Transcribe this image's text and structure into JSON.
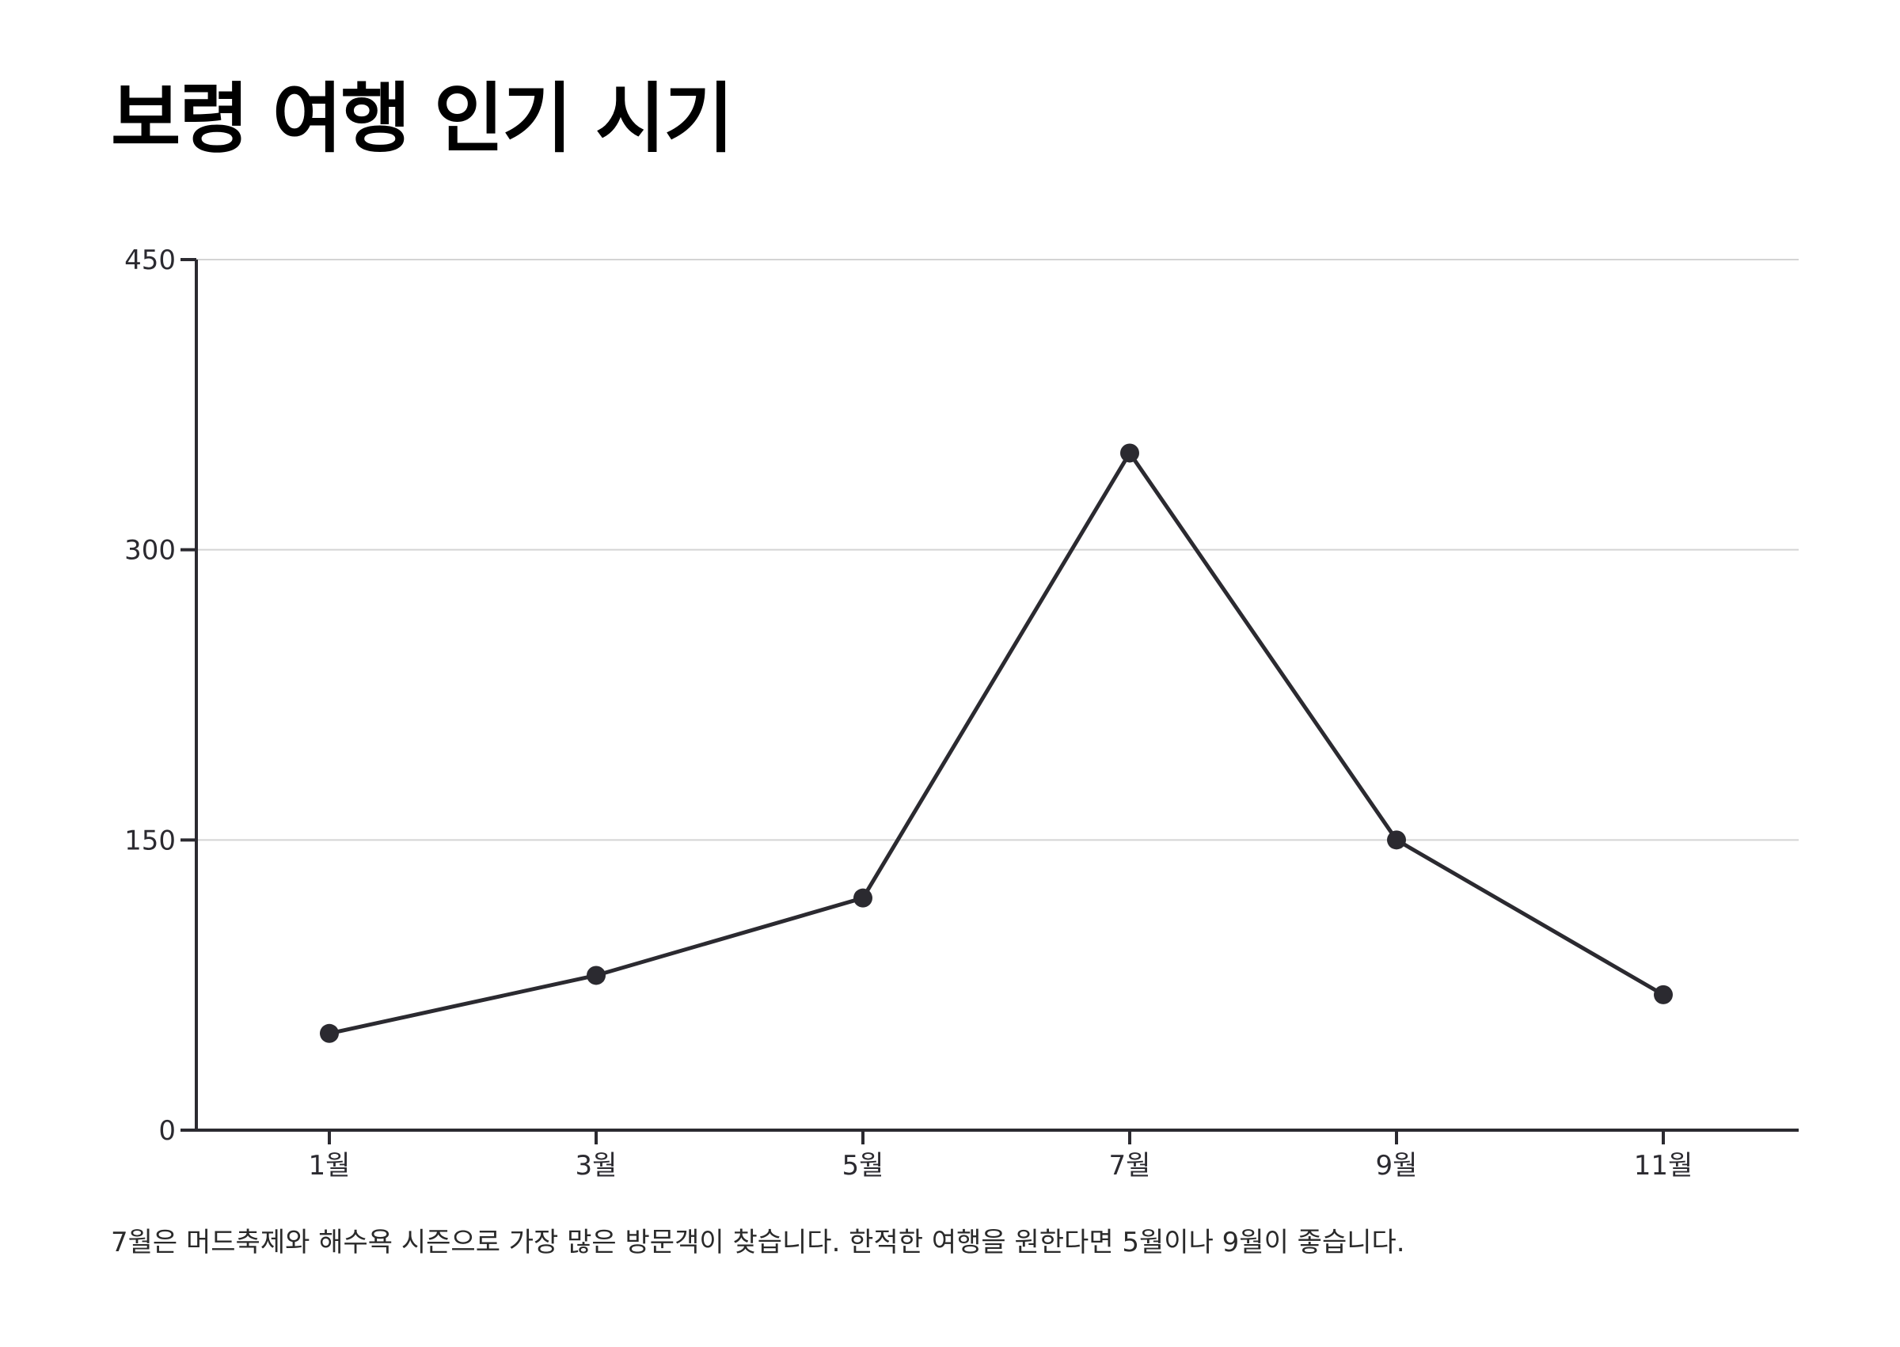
{
  "chart_data": {
    "type": "line",
    "title": "보령 여행 인기 시기",
    "caption": "7월은 머드축제와 해수욕 시즌으로 가장 많은 방문객이 찾습니다. 한적한 여행을 원한다면 5월이나 9월이 좋습니다.",
    "categories": [
      "1월",
      "3월",
      "5월",
      "7월",
      "9월",
      "11월"
    ],
    "series": [
      {
        "values": [
          50,
          80,
          120,
          350,
          150,
          70
        ]
      }
    ],
    "xlabel": "",
    "ylabel": "",
    "ylim": [
      0,
      450
    ],
    "yticks": [
      0,
      150,
      300,
      450
    ],
    "ytick_labels": [
      "0",
      "150",
      "300",
      "450"
    ],
    "grid": true,
    "legend": "none",
    "colors": {
      "line": "#2b2a30",
      "axis": "#2b2a30",
      "grid": "#d4d4d4"
    }
  }
}
